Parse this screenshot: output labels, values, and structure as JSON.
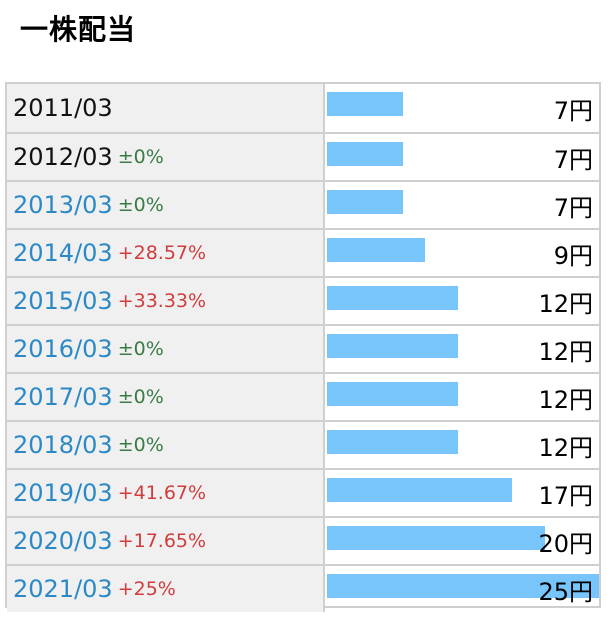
{
  "title": "一株配当",
  "colors": {
    "bar": "#78c5fb",
    "link_year": "#2b8ac5",
    "plain_year": "#111111",
    "positive_change": "#d23c3c",
    "neutral_change": "#3a7a47"
  },
  "chart_data": {
    "type": "bar",
    "orientation": "horizontal",
    "title": "一株配当",
    "unit": "円",
    "xlim": [
      0,
      25
    ],
    "categories": [
      "2011/03",
      "2012/03",
      "2013/03",
      "2014/03",
      "2015/03",
      "2016/03",
      "2017/03",
      "2018/03",
      "2019/03",
      "2020/03",
      "2021/03"
    ],
    "values": [
      7,
      7,
      7,
      9,
      12,
      12,
      12,
      12,
      17,
      20,
      25
    ],
    "rows": [
      {
        "year": "2011/03",
        "change": "",
        "value_label": "7円",
        "link": false
      },
      {
        "year": "2012/03",
        "change": "±0%",
        "value_label": "7円",
        "link": false
      },
      {
        "year": "2013/03",
        "change": "±0%",
        "value_label": "7円",
        "link": true
      },
      {
        "year": "2014/03",
        "change": "+28.57%",
        "value_label": "9円",
        "link": true
      },
      {
        "year": "2015/03",
        "change": "+33.33%",
        "value_label": "12円",
        "link": true
      },
      {
        "year": "2016/03",
        "change": "±0%",
        "value_label": "12円",
        "link": true
      },
      {
        "year": "2017/03",
        "change": "±0%",
        "value_label": "12円",
        "link": true
      },
      {
        "year": "2018/03",
        "change": "±0%",
        "value_label": "12円",
        "link": true
      },
      {
        "year": "2019/03",
        "change": "+41.67%",
        "value_label": "17円",
        "link": true
      },
      {
        "year": "2020/03",
        "change": "+17.65%",
        "value_label": "20円",
        "link": true
      },
      {
        "year": "2021/03",
        "change": "+25%",
        "value_label": "25円",
        "link": true
      }
    ]
  }
}
